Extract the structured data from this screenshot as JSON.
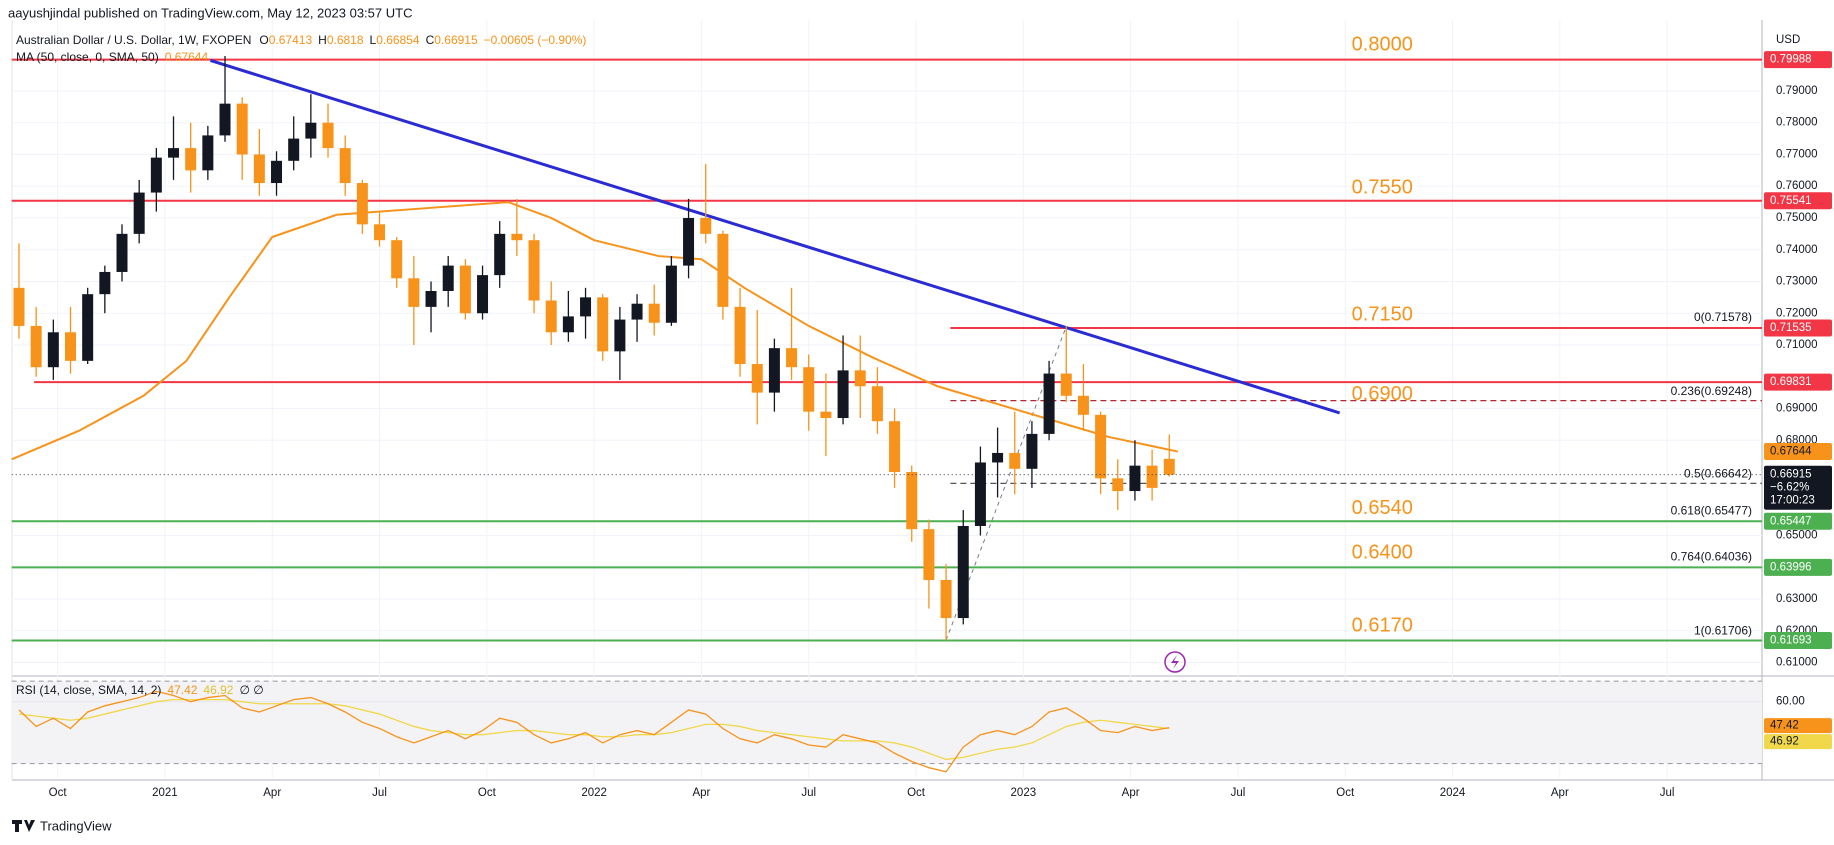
{
  "header": {
    "publisher": "aayushjindal published on TradingView.com, May 12, 2023 03:57 UTC",
    "symbol": "Australian Dollar / U.S. Dollar, 1W, FXOPEN",
    "ohlc_keys": [
      "O",
      "H",
      "L",
      "C"
    ],
    "change": "−0.00605 (−0.90%)",
    "ma_label": "MA (50, close, 0, SMA, 50)",
    "rsi_label": "RSI (14, close, SMA, 14, 2)",
    "rsi_extra": "∅ ∅",
    "currency": "USD"
  },
  "footer": "TradingView",
  "chart_data": {
    "type": "candlestick",
    "xlim": [
      2020.643,
      2024.721
    ],
    "xticks": [
      {
        "value": 2020.75,
        "label": "Oct"
      },
      {
        "value": 2021,
        "label": "2021"
      },
      {
        "value": 2021.25,
        "label": "Apr"
      },
      {
        "value": 2021.5,
        "label": "Jul"
      },
      {
        "value": 2021.75,
        "label": "Oct"
      },
      {
        "value": 2022,
        "label": "2022"
      },
      {
        "value": 2022.25,
        "label": "Apr"
      },
      {
        "value": 2022.5,
        "label": "Jul"
      },
      {
        "value": 2022.75,
        "label": "Oct"
      },
      {
        "value": 2023,
        "label": "2023"
      },
      {
        "value": 2023.25,
        "label": "Apr"
      },
      {
        "value": 2023.5,
        "label": "Jul"
      },
      {
        "value": 2023.75,
        "label": "Oct"
      },
      {
        "value": 2024,
        "label": "2024"
      },
      {
        "value": 2024.25,
        "label": "Apr"
      },
      {
        "value": 2024.5,
        "label": "Jul"
      }
    ],
    "ylim": [
      0.6067,
      0.8114
    ],
    "yticks": [
      {
        "value": 0.79,
        "label": "0.79000"
      },
      {
        "value": 0.78,
        "label": "0.78000"
      },
      {
        "value": 0.77,
        "label": "0.77000"
      },
      {
        "value": 0.76,
        "label": "0.76000"
      },
      {
        "value": 0.75,
        "label": "0.75000"
      },
      {
        "value": 0.74,
        "label": "0.74000"
      },
      {
        "value": 0.73,
        "label": "0.73000"
      },
      {
        "value": 0.72,
        "label": "0.72000"
      },
      {
        "value": 0.71,
        "label": "0.71000"
      },
      {
        "value": 0.69,
        "label": "0.69000"
      },
      {
        "value": 0.68,
        "label": "0.68000"
      },
      {
        "value": 0.65,
        "label": "0.65000"
      },
      {
        "value": 0.63,
        "label": "0.63000"
      },
      {
        "value": 0.62,
        "label": "0.62000"
      },
      {
        "value": 0.61,
        "label": "0.61000"
      }
    ],
    "grid": true,
    "up_color": "#131722",
    "down_color": "#f7931a",
    "x": [
      2020.66,
      2020.7,
      2020.74,
      2020.78,
      2020.82,
      2020.86,
      2020.9,
      2020.94,
      2020.98,
      2021.02,
      2021.06,
      2021.1,
      2021.14,
      2021.18,
      2021.22,
      2021.26,
      2021.3,
      2021.34,
      2021.38,
      2021.42,
      2021.46,
      2021.5,
      2021.54,
      2021.58,
      2021.62,
      2021.66,
      2021.7,
      2021.74,
      2021.78,
      2021.82,
      2021.86,
      2021.9,
      2021.94,
      2021.98,
      2022.02,
      2022.06,
      2022.1,
      2022.14,
      2022.18,
      2022.22,
      2022.26,
      2022.3,
      2022.34,
      2022.38,
      2022.42,
      2022.46,
      2022.5,
      2022.54,
      2022.58,
      2022.62,
      2022.66,
      2022.7,
      2022.74,
      2022.78,
      2022.82,
      2022.86,
      2022.9,
      2022.94,
      2022.98,
      2023.02,
      2023.06,
      2023.1,
      2023.14,
      2023.18,
      2023.22,
      2023.26,
      2023.3,
      2023.34
    ],
    "open": [
      0.728,
      0.716,
      0.703,
      0.714,
      0.705,
      0.726,
      0.733,
      0.745,
      0.758,
      0.769,
      0.772,
      0.765,
      0.776,
      0.786,
      0.77,
      0.761,
      0.768,
      0.775,
      0.78,
      0.772,
      0.761,
      0.748,
      0.743,
      0.731,
      0.722,
      0.727,
      0.735,
      0.72,
      0.732,
      0.745,
      0.743,
      0.724,
      0.714,
      0.719,
      0.725,
      0.708,
      0.718,
      0.723,
      0.717,
      0.735,
      0.75,
      0.745,
      0.722,
      0.704,
      0.695,
      0.709,
      0.703,
      0.689,
      0.687,
      0.702,
      0.697,
      0.686,
      0.67,
      0.652,
      0.636,
      0.624,
      0.653,
      0.673,
      0.676,
      0.671,
      0.682,
      0.701,
      0.694,
      0.688,
      0.668,
      0.664,
      0.672,
      0.67413
    ],
    "high": [
      0.742,
      0.722,
      0.718,
      0.722,
      0.728,
      0.735,
      0.748,
      0.762,
      0.772,
      0.782,
      0.78,
      0.779,
      0.801,
      0.788,
      0.778,
      0.771,
      0.782,
      0.789,
      0.786,
      0.776,
      0.762,
      0.752,
      0.744,
      0.738,
      0.73,
      0.738,
      0.737,
      0.735,
      0.749,
      0.756,
      0.745,
      0.73,
      0.727,
      0.728,
      0.726,
      0.722,
      0.726,
      0.729,
      0.738,
      0.756,
      0.767,
      0.746,
      0.728,
      0.721,
      0.712,
      0.728,
      0.707,
      0.701,
      0.713,
      0.713,
      0.703,
      0.69,
      0.672,
      0.655,
      0.641,
      0.658,
      0.678,
      0.684,
      0.689,
      0.686,
      0.705,
      0.716,
      0.704,
      0.689,
      0.674,
      0.68,
      0.677,
      0.6818
    ],
    "low": [
      0.712,
      0.7,
      0.699,
      0.701,
      0.704,
      0.72,
      0.73,
      0.742,
      0.752,
      0.762,
      0.758,
      0.762,
      0.774,
      0.762,
      0.757,
      0.757,
      0.765,
      0.769,
      0.769,
      0.757,
      0.745,
      0.741,
      0.728,
      0.71,
      0.714,
      0.722,
      0.718,
      0.718,
      0.728,
      0.738,
      0.72,
      0.71,
      0.711,
      0.712,
      0.705,
      0.699,
      0.711,
      0.713,
      0.716,
      0.731,
      0.742,
      0.718,
      0.7,
      0.685,
      0.689,
      0.699,
      0.683,
      0.675,
      0.685,
      0.687,
      0.682,
      0.665,
      0.648,
      0.627,
      0.617,
      0.622,
      0.65,
      0.662,
      0.663,
      0.665,
      0.68,
      0.692,
      0.683,
      0.663,
      0.658,
      0.661,
      0.661,
      0.66854
    ],
    "close": [
      0.716,
      0.703,
      0.714,
      0.705,
      0.726,
      0.733,
      0.745,
      0.758,
      0.769,
      0.772,
      0.765,
      0.776,
      0.786,
      0.77,
      0.761,
      0.768,
      0.775,
      0.78,
      0.772,
      0.761,
      0.748,
      0.743,
      0.731,
      0.722,
      0.727,
      0.735,
      0.72,
      0.732,
      0.745,
      0.743,
      0.724,
      0.714,
      0.719,
      0.725,
      0.708,
      0.718,
      0.723,
      0.717,
      0.735,
      0.75,
      0.745,
      0.722,
      0.704,
      0.695,
      0.709,
      0.703,
      0.689,
      0.687,
      0.702,
      0.697,
      0.686,
      0.67,
      0.652,
      0.636,
      0.624,
      0.653,
      0.673,
      0.676,
      0.671,
      0.682,
      0.701,
      0.694,
      0.688,
      0.668,
      0.664,
      0.672,
      0.665,
      0.66915
    ],
    "close_extra": [
      "−6.62%",
      "17:00:23"
    ],
    "ma": {
      "color": "#f7931a",
      "x": [
        2020.643,
        2020.8,
        2020.95,
        2021.05,
        2021.15,
        2021.25,
        2021.4,
        2021.6,
        2021.8,
        2021.9,
        2022.0,
        2022.15,
        2022.25,
        2022.35,
        2022.5,
        2022.65,
        2022.8,
        2022.9,
        2023.0,
        2023.1,
        2023.2,
        2023.36
      ],
      "values": [
        0.674,
        0.683,
        0.694,
        0.705,
        0.725,
        0.744,
        0.751,
        0.753,
        0.755,
        0.75,
        0.743,
        0.738,
        0.737,
        0.728,
        0.716,
        0.706,
        0.697,
        0.693,
        0.689,
        0.685,
        0.681,
        0.67644
      ]
    },
    "levels": [
      {
        "value": 0.79988,
        "color": "#f23645",
        "from": 2020.643
      },
      {
        "value": 0.75541,
        "color": "#f23645",
        "from": 2020.643
      },
      {
        "value": 0.71535,
        "color": "#f23645",
        "from": 2022.83
      },
      {
        "value": 0.69831,
        "color": "#f23645",
        "from": 2020.695
      },
      {
        "value": 0.65447,
        "color": "#4caf50",
        "from": 2020.643
      },
      {
        "value": 0.63996,
        "color": "#4caf50",
        "from": 2020.643
      },
      {
        "value": 0.61693,
        "color": "#4caf50",
        "from": 2020.643
      }
    ],
    "annotations": {
      "x": 2023.765,
      "color": "#f7931a",
      "items": [
        {
          "value": 0.8,
          "label": "0.8000"
        },
        {
          "value": 0.755,
          "label": "0.7550"
        },
        {
          "value": 0.715,
          "label": "0.7150"
        },
        {
          "value": 0.69,
          "label": "0.6900"
        },
        {
          "value": 0.654,
          "label": "0.6540"
        },
        {
          "value": 0.64,
          "label": "0.6400"
        },
        {
          "value": 0.617,
          "label": "0.6170"
        }
      ]
    },
    "trendline": {
      "color": "#2b2bd4",
      "x": [
        2021.106,
        2023.737
      ],
      "y": [
        0.7996,
        0.6886
      ]
    },
    "fib": {
      "from": 2022.83,
      "anchor_x": [
        2022.82,
        2023.1
      ],
      "levels": [
        {
          "value": 0.71578,
          "label": "0(0.71578)",
          "color": "#787b86",
          "dashed": false
        },
        {
          "value": 0.69248,
          "label": "0.236(0.69248)",
          "color": "#b22833",
          "dashed": true
        },
        {
          "value": 0.66642,
          "label": "0.5(0.66642)",
          "color": "#555555",
          "dashed": true
        },
        {
          "value": 0.65477,
          "label": "0.618(0.65477)",
          "color": "#4caf50",
          "dashed": false
        },
        {
          "value": 0.64036,
          "label": "0.764(0.64036)",
          "color": "#b22833",
          "dashed": false
        },
        {
          "value": 0.61706,
          "label": "1(0.61706)",
          "color": "#64b5f6",
          "dashed": false
        }
      ]
    },
    "rsi": {
      "ylim": [
        23,
        71
      ],
      "yticks": [
        {
          "value": 60,
          "label": "60.00"
        }
      ],
      "levels": [
        70,
        30
      ],
      "color": "#f7931a",
      "signal_color": "#f0d84a",
      "values": [
        56,
        48,
        52,
        47,
        55,
        58,
        60,
        62,
        65,
        63,
        60,
        62,
        63,
        57,
        55,
        58,
        61,
        62,
        59,
        55,
        50,
        47,
        43,
        40,
        43,
        46,
        42,
        46,
        52,
        50,
        44,
        40,
        42,
        45,
        40,
        44,
        46,
        44,
        50,
        56,
        54,
        47,
        42,
        40,
        44,
        42,
        39,
        38,
        44,
        42,
        40,
        35,
        31,
        28,
        26,
        38,
        44,
        46,
        44,
        48,
        55,
        57,
        52,
        46,
        45,
        48,
        46,
        47.42
      ],
      "signal": [
        54,
        53,
        52,
        51,
        52,
        54,
        56,
        58,
        60,
        61,
        61,
        61,
        61,
        60,
        59,
        59,
        59,
        59,
        59,
        58,
        56,
        54,
        51,
        48,
        46,
        45,
        44,
        44,
        45,
        46,
        46,
        45,
        44,
        44,
        43,
        43,
        44,
        44,
        45,
        47,
        49,
        49,
        48,
        46,
        45,
        44,
        43,
        42,
        41,
        41,
        41,
        40,
        38,
        35,
        32,
        33,
        35,
        37,
        38,
        40,
        44,
        48,
        50,
        51,
        50,
        49,
        48,
        46.92
      ]
    }
  }
}
